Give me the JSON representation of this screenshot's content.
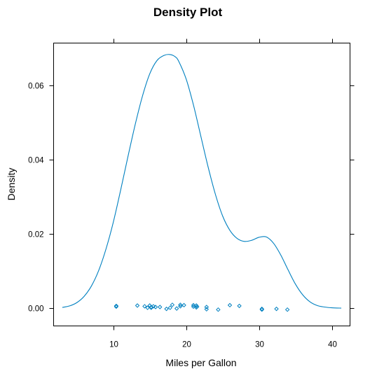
{
  "chart_data": {
    "type": "line",
    "title": "Density Plot",
    "xlabel": "Miles per Gallon",
    "ylabel": "Density",
    "xlim": [
      1.8,
      42.5
    ],
    "ylim": [
      -0.0048,
      0.0715
    ],
    "xticks": [
      10,
      20,
      30,
      40
    ],
    "xtick_labels": [
      "10",
      "20",
      "30",
      "40"
    ],
    "yticks": [
      0,
      0.02,
      0.04,
      0.06
    ],
    "ytick_labels": [
      "0.00",
      "0.02",
      "0.04",
      "0.06"
    ],
    "grid": false,
    "color": "#0080c0",
    "density": {
      "x": [
        3.0,
        4.0,
        5.0,
        6.0,
        7.0,
        8.0,
        9.0,
        10.0,
        11.0,
        12.0,
        13.0,
        14.0,
        15.0,
        16.0,
        17.0,
        17.8,
        18.5,
        19.0,
        20.0,
        21.0,
        22.0,
        23.0,
        24.0,
        25.0,
        26.0,
        27.0,
        28.0,
        29.0,
        30.0,
        31.0,
        32.0,
        33.0,
        34.0,
        35.0,
        36.0,
        37.0,
        38.0,
        39.0,
        40.0,
        41.3
      ],
      "y": [
        0.0002,
        0.0006,
        0.0015,
        0.0032,
        0.006,
        0.0102,
        0.016,
        0.0232,
        0.0318,
        0.0408,
        0.0495,
        0.0572,
        0.0632,
        0.0668,
        0.0682,
        0.0684,
        0.0678,
        0.0665,
        0.0618,
        0.0548,
        0.0465,
        0.0382,
        0.0308,
        0.0249,
        0.021,
        0.0188,
        0.018,
        0.0183,
        0.0191,
        0.0192,
        0.0175,
        0.0143,
        0.0103,
        0.0065,
        0.0036,
        0.0017,
        0.0007,
        0.0003,
        0.0001,
        0.0
      ]
    },
    "rug": {
      "x": [
        10.4,
        10.4,
        13.3,
        14.3,
        14.7,
        15.0,
        15.2,
        15.2,
        15.5,
        15.8,
        16.4,
        17.3,
        17.8,
        18.1,
        18.7,
        19.2,
        19.2,
        19.7,
        21.0,
        21.0,
        21.4,
        21.4,
        21.5,
        22.8,
        22.8,
        24.4,
        26.0,
        27.3,
        30.4,
        30.4,
        32.4,
        33.9
      ],
      "y": [
        0.0004,
        0.0006,
        0.0007,
        0.0005,
        0.0001,
        0.0007,
        0.0003,
        0.0001,
        0.0005,
        0.0003,
        0.0003,
        -0.0002,
        0.0001,
        0.0009,
        -0.0001,
        0.0005,
        0.0009,
        0.0008,
        0.0004,
        0.0008,
        0.0002,
        0.0007,
        0.0004,
        -0.0003,
        0.0003,
        -0.0004,
        0.0008,
        0.0006,
        -0.0002,
        -0.0004,
        -0.0002,
        -0.0004
      ]
    }
  }
}
